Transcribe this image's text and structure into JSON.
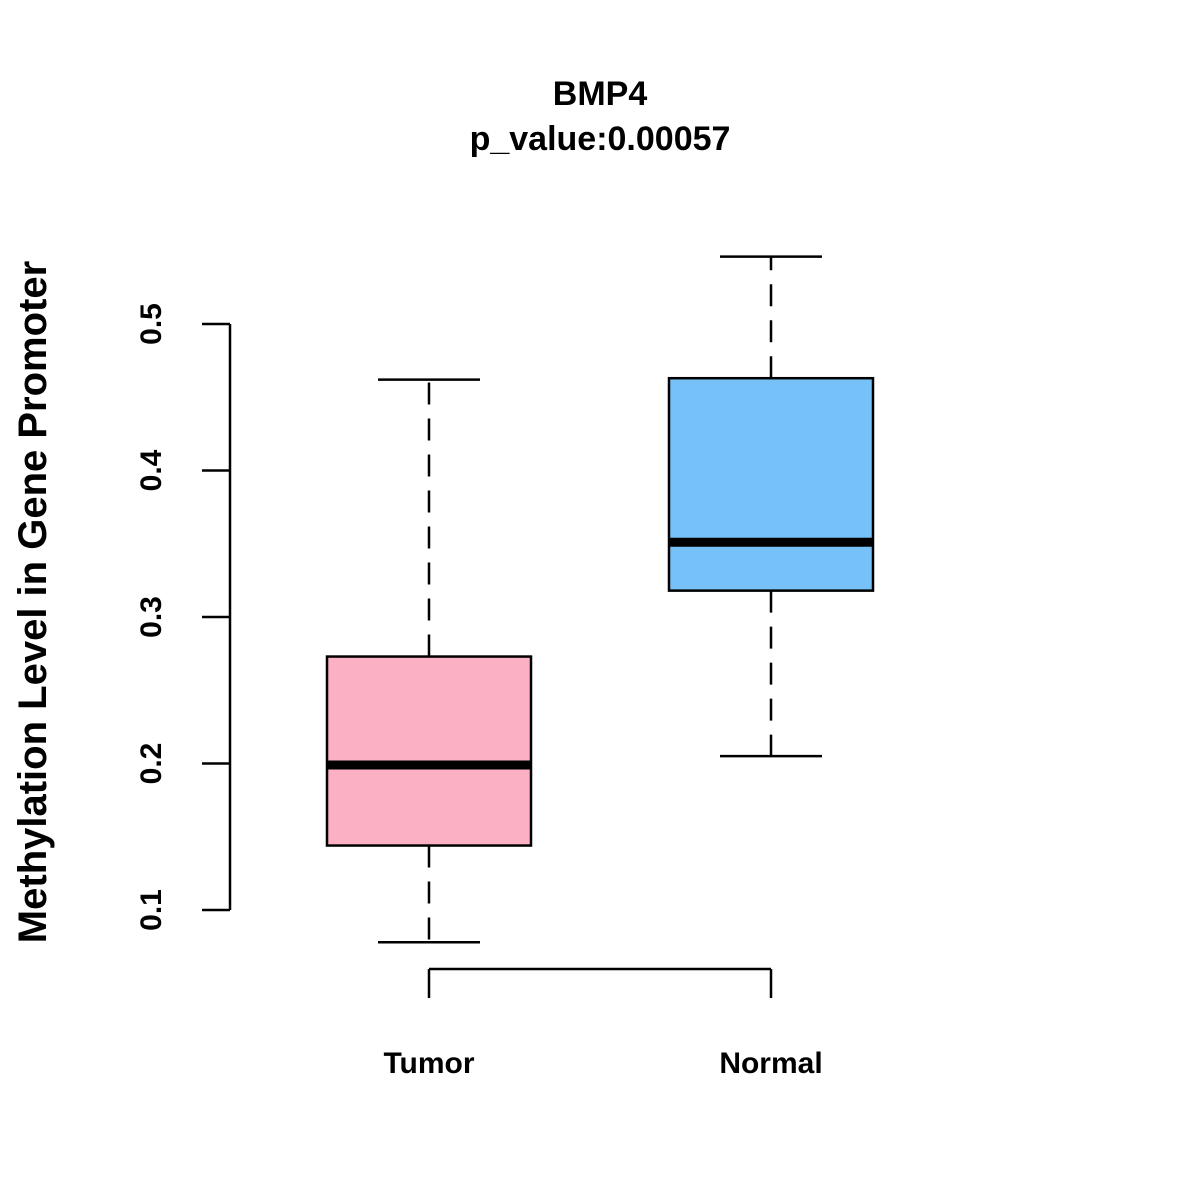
{
  "chart_data": {
    "type": "boxplot",
    "title": "BMP4",
    "subtitle": "p_value:0.00057",
    "xlabel": "",
    "ylabel": "Methylation Level in Gene Promoter",
    "ylim": [
      0.1,
      0.5
    ],
    "yticks": [
      0.1,
      0.2,
      0.3,
      0.4,
      0.5
    ],
    "ytick_labels": [
      "0.1",
      "0.2",
      "0.3",
      "0.4",
      "0.5"
    ],
    "grid": false,
    "categories": [
      "Tumor",
      "Normal"
    ],
    "series": [
      {
        "name": "Tumor",
        "color": "#FBB1C3",
        "whisker_low": 0.078,
        "q1": 0.144,
        "median": 0.199,
        "q3": 0.273,
        "whisker_high": 0.462
      },
      {
        "name": "Normal",
        "color": "#76C1F8",
        "whisker_low": 0.205,
        "q1": 0.318,
        "median": 0.351,
        "q3": 0.463,
        "whisker_high": 0.546
      }
    ]
  }
}
